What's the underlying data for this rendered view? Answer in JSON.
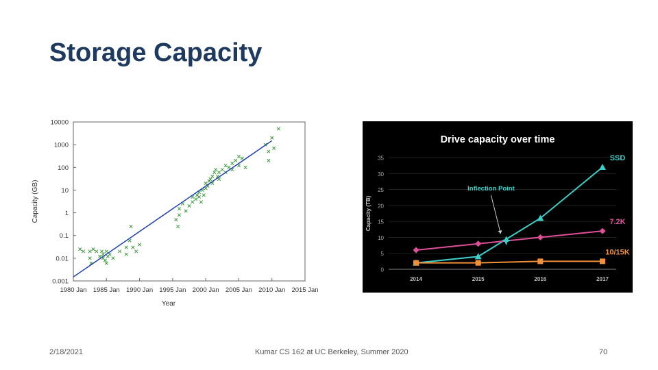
{
  "slide": {
    "title": "Storage Capacity",
    "footer_date": "2/18/2021",
    "footer_center": "Kumar CS 162 at UC Berkeley, Summer 2020",
    "page_number": "70"
  },
  "chart_data": [
    {
      "type": "scatter",
      "title": "",
      "xlabel": "Year",
      "ylabel": "Capacity (GB)",
      "y_scale": "log",
      "xlim": [
        1980,
        2015
      ],
      "ylim": [
        0.001,
        10000
      ],
      "x_tick_labels": [
        "1980 Jan",
        "1985 Jan",
        "1990 Jan",
        "1995 Jan",
        "2000 Jan",
        "2005 Jan",
        "2010 Jan",
        "2015 Jan"
      ],
      "x_ticks": [
        1980,
        1985,
        1990,
        1995,
        2000,
        2005,
        2010,
        2015
      ],
      "y_tick_labels": [
        "0.001",
        "0.01",
        "0.1",
        "1",
        "10",
        "100",
        "1000",
        "10000"
      ],
      "y_ticks": [
        0.001,
        0.01,
        0.1,
        1,
        10,
        100,
        1000,
        10000
      ],
      "grid": false,
      "colors": {
        "points": "#3a9a3a",
        "trend": "#2040b0",
        "frame": "#666666"
      },
      "trend": {
        "x": [
          1980,
          2010
        ],
        "y": [
          0.0015,
          1500
        ]
      },
      "points": [
        [
          1981,
          0.025
        ],
        [
          1981.5,
          0.02
        ],
        [
          1982.5,
          0.02
        ],
        [
          1982.5,
          0.01
        ],
        [
          1982.7,
          0.006
        ],
        [
          1983,
          0.025
        ],
        [
          1983.5,
          0.02
        ],
        [
          1984,
          0.012
        ],
        [
          1984.3,
          0.02
        ],
        [
          1984.5,
          0.015
        ],
        [
          1984.5,
          0.01
        ],
        [
          1984.8,
          0.008
        ],
        [
          1985,
          0.006
        ],
        [
          1985,
          0.02
        ],
        [
          1985.2,
          0.012
        ],
        [
          1985.5,
          0.015
        ],
        [
          1986,
          0.01
        ],
        [
          1987,
          0.02
        ],
        [
          1988,
          0.03
        ],
        [
          1988,
          0.015
        ],
        [
          1988.5,
          0.06
        ],
        [
          1988.7,
          0.25
        ],
        [
          1989,
          0.03
        ],
        [
          1989.5,
          0.02
        ],
        [
          1990,
          0.04
        ],
        [
          1995.5,
          0.5
        ],
        [
          1995.8,
          0.25
        ],
        [
          1996,
          1.5
        ],
        [
          1996,
          0.8
        ],
        [
          1996.5,
          2.5
        ],
        [
          1997,
          1.2
        ],
        [
          1997.5,
          2
        ],
        [
          1998,
          3
        ],
        [
          1998,
          5
        ],
        [
          1998.5,
          4
        ],
        [
          1998.7,
          6
        ],
        [
          1999,
          8
        ],
        [
          1999,
          5
        ],
        [
          1999.3,
          3
        ],
        [
          1999.5,
          10
        ],
        [
          1999.7,
          6
        ],
        [
          2000,
          12
        ],
        [
          2000,
          20
        ],
        [
          2000.3,
          15
        ],
        [
          2000.5,
          25
        ],
        [
          2000.7,
          30
        ],
        [
          2001,
          40
        ],
        [
          2001,
          20
        ],
        [
          2001.3,
          60
        ],
        [
          2001.5,
          80
        ],
        [
          2001.8,
          40
        ],
        [
          2002,
          60
        ],
        [
          2002,
          30
        ],
        [
          2002.5,
          80
        ],
        [
          2003,
          120
        ],
        [
          2003,
          60
        ],
        [
          2003.5,
          100
        ],
        [
          2004,
          150
        ],
        [
          2004,
          80
        ],
        [
          2004.5,
          200
        ],
        [
          2005,
          120
        ],
        [
          2005,
          300
        ],
        [
          2005.5,
          250
        ],
        [
          2006,
          100
        ],
        [
          2009,
          1000
        ],
        [
          2009.5,
          500
        ],
        [
          2009.5,
          200
        ],
        [
          2010,
          2000
        ],
        [
          2010.3,
          700
        ],
        [
          2011,
          5000
        ]
      ]
    },
    {
      "type": "line",
      "title": "Drive capacity over time",
      "xlabel": "",
      "ylabel": "Capacity (TB)",
      "categories": [
        "2014",
        "2015",
        "2016",
        "2017"
      ],
      "ylim": [
        0,
        35
      ],
      "y_ticks": [
        0,
        5,
        10,
        15,
        20,
        25,
        30,
        35
      ],
      "grid": false,
      "background": "#000000",
      "series": [
        {
          "name": "SSD",
          "color": "#3ccfc8",
          "marker": "triangle",
          "values": [
            2,
            4,
            16,
            32
          ]
        },
        {
          "name": "7.2K",
          "color": "#e0509a",
          "marker": "diamond",
          "values": [
            6,
            8,
            10,
            12
          ]
        },
        {
          "name": "10/15K",
          "color": "#f0913a",
          "marker": "square",
          "values": [
            2,
            2,
            2.5,
            2.5
          ]
        }
      ],
      "annotation": {
        "label": "Inflection Point",
        "x": 2015.45,
        "y": 9
      }
    }
  ]
}
